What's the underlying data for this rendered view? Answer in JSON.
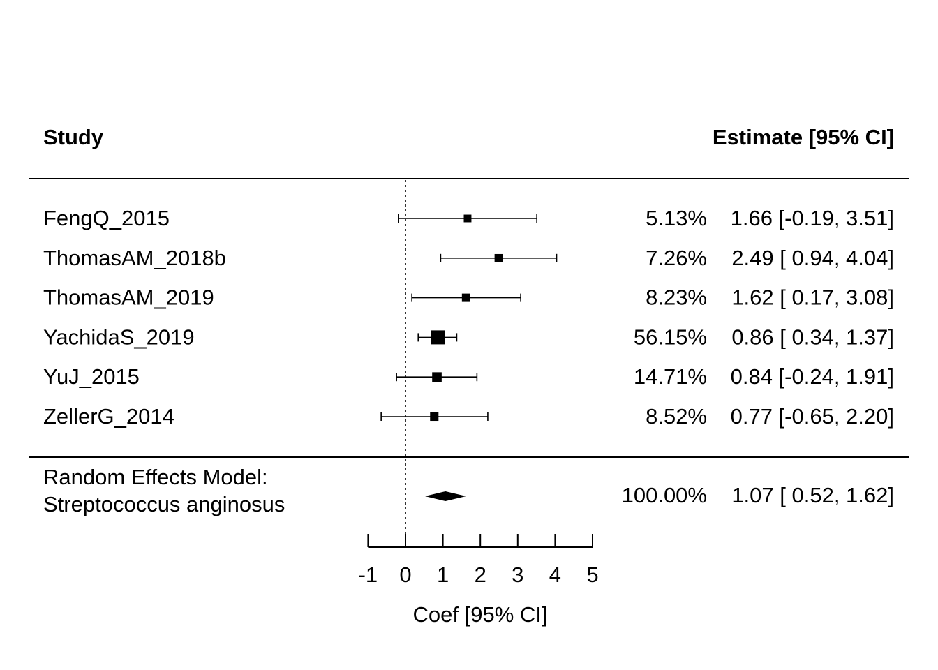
{
  "chart_data": {
    "type": "forest",
    "header_study": "Study",
    "header_estimate": "Estimate [95% CI]",
    "xlabel": "Coef [95% CI]",
    "xlim": [
      -1,
      5
    ],
    "ticks": [
      -1,
      0,
      1,
      2,
      3,
      4,
      5
    ],
    "reference_line": 0,
    "studies": [
      {
        "name": "FengQ_2015",
        "estimate": 1.66,
        "lower": -0.19,
        "upper": 3.51,
        "weight": 5.13,
        "weight_text": "5.13%",
        "ci_text": "1.66 [-0.19, 3.51]"
      },
      {
        "name": "ThomasAM_2018b",
        "estimate": 2.49,
        "lower": 0.94,
        "upper": 4.04,
        "weight": 7.26,
        "weight_text": "7.26%",
        "ci_text": "2.49 [ 0.94, 4.04]"
      },
      {
        "name": "ThomasAM_2019",
        "estimate": 1.62,
        "lower": 0.17,
        "upper": 3.08,
        "weight": 8.23,
        "weight_text": "8.23%",
        "ci_text": "1.62 [ 0.17, 3.08]"
      },
      {
        "name": "YachidaS_2019",
        "estimate": 0.86,
        "lower": 0.34,
        "upper": 1.37,
        "weight": 56.15,
        "weight_text": "56.15%",
        "ci_text": "0.86 [ 0.34, 1.37]"
      },
      {
        "name": "YuJ_2015",
        "estimate": 0.84,
        "lower": -0.24,
        "upper": 1.91,
        "weight": 14.71,
        "weight_text": "14.71%",
        "ci_text": "0.84 [-0.24, 1.91]"
      },
      {
        "name": "ZellerG_2014",
        "estimate": 0.77,
        "lower": -0.65,
        "upper": 2.2,
        "weight": 8.52,
        "weight_text": "8.52%",
        "ci_text": "0.77 [-0.65, 2.20]"
      }
    ],
    "summary": {
      "label_line1": "Random Effects Model:",
      "label_line2": "Streptococcus anginosus",
      "estimate": 1.07,
      "lower": 0.52,
      "upper": 1.62,
      "weight_text": "100.00%",
      "ci_text": "1.07 [ 0.52, 1.62]"
    }
  }
}
